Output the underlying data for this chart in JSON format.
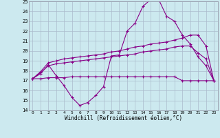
{
  "x": [
    0,
    1,
    2,
    3,
    4,
    5,
    6,
    7,
    8,
    9,
    10,
    11,
    12,
    13,
    14,
    15,
    16,
    17,
    18,
    19,
    20,
    21,
    22,
    23
  ],
  "line1": [
    17.2,
    17.7,
    18.6,
    17.5,
    16.5,
    15.3,
    14.5,
    14.8,
    15.5,
    16.4,
    19.5,
    19.6,
    22.0,
    22.8,
    24.5,
    25.2,
    25.2,
    23.5,
    23.0,
    21.6,
    20.7,
    19.4,
    18.5,
    17.0
  ],
  "line2": [
    17.2,
    17.9,
    18.8,
    19.0,
    19.2,
    19.3,
    19.4,
    19.5,
    19.6,
    19.7,
    19.9,
    20.0,
    20.2,
    20.4,
    20.5,
    20.7,
    20.8,
    20.9,
    21.1,
    21.3,
    21.6,
    21.6,
    20.5,
    17.0
  ],
  "line3": [
    17.2,
    17.8,
    18.5,
    18.7,
    18.8,
    18.9,
    19.0,
    19.1,
    19.2,
    19.3,
    19.4,
    19.5,
    19.6,
    19.7,
    19.9,
    20.0,
    20.1,
    20.2,
    20.4,
    20.5,
    20.5,
    19.8,
    19.2,
    17.0
  ],
  "line4": [
    17.2,
    17.2,
    17.3,
    17.3,
    17.3,
    17.4,
    17.4,
    17.4,
    17.4,
    17.4,
    17.4,
    17.4,
    17.4,
    17.4,
    17.4,
    17.4,
    17.4,
    17.4,
    17.4,
    17.0,
    17.0,
    17.0,
    17.0,
    17.0
  ],
  "bg_color": "#cce9ef",
  "grid_color": "#aabbcc",
  "line_color": "#880088",
  "xlabel": "Windchill (Refroidissement éolien,°C)",
  "xlim": [
    -0.5,
    23.5
  ],
  "ylim": [
    14,
    25
  ],
  "yticks": [
    14,
    15,
    16,
    17,
    18,
    19,
    20,
    21,
    22,
    23,
    24,
    25
  ],
  "xticks": [
    0,
    1,
    2,
    3,
    4,
    5,
    6,
    7,
    8,
    9,
    10,
    11,
    12,
    13,
    14,
    15,
    16,
    17,
    18,
    19,
    20,
    21,
    22,
    23
  ]
}
